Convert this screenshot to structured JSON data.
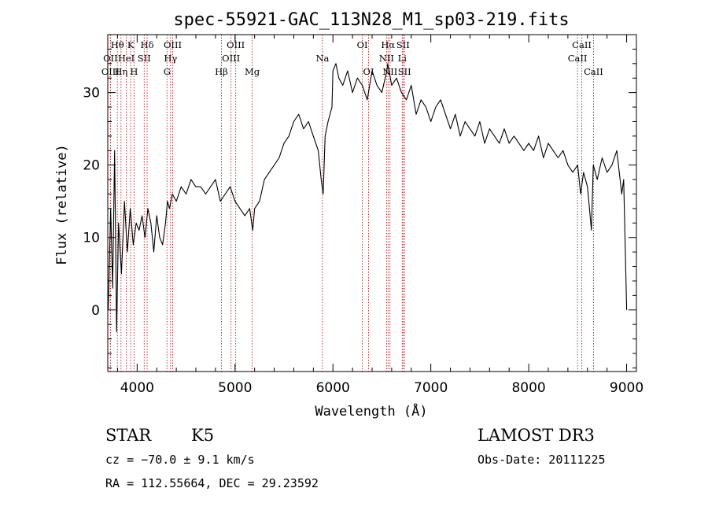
{
  "chart_data": {
    "type": "line",
    "title": "spec-55921-GAC_113N28_M1_sp03-219.fits",
    "xlabel": "Wavelength (Å)",
    "ylabel": "Flux (relative)",
    "xlim": [
      3700,
      9100
    ],
    "ylim": [
      -8.5,
      38
    ],
    "x_ticks": [
      4000,
      5000,
      6000,
      7000,
      8000,
      9000
    ],
    "y_ticks": [
      0,
      10,
      20,
      30
    ],
    "x_tick_labels": [
      "4000",
      "5000",
      "6000",
      "7000",
      "8000",
      "9000"
    ],
    "y_tick_labels": [
      "0",
      "10",
      "20",
      "30"
    ],
    "series": [
      {
        "name": "flux",
        "color": "#000000",
        "x": [
          3705,
          3730,
          3750,
          3770,
          3790,
          3810,
          3840,
          3870,
          3900,
          3930,
          3960,
          3990,
          4020,
          4050,
          4080,
          4110,
          4140,
          4170,
          4200,
          4230,
          4260,
          4290,
          4310,
          4330,
          4360,
          4400,
          4450,
          4500,
          4550,
          4600,
          4650,
          4700,
          4750,
          4800,
          4850,
          4900,
          4950,
          5000,
          5050,
          5100,
          5150,
          5180,
          5200,
          5250,
          5300,
          5350,
          5400,
          5450,
          5500,
          5550,
          5600,
          5650,
          5700,
          5750,
          5800,
          5850,
          5880,
          5900,
          5920,
          5950,
          5990,
          6000,
          6030,
          6060,
          6100,
          6150,
          6200,
          6250,
          6300,
          6350,
          6400,
          6450,
          6500,
          6550,
          6560,
          6600,
          6650,
          6700,
          6750,
          6800,
          6850,
          6900,
          6950,
          7000,
          7050,
          7100,
          7150,
          7200,
          7250,
          7300,
          7350,
          7400,
          7450,
          7500,
          7550,
          7600,
          7650,
          7700,
          7750,
          7800,
          7850,
          7900,
          7950,
          8000,
          8050,
          8100,
          8150,
          8200,
          8250,
          8300,
          8350,
          8400,
          8450,
          8500,
          8530,
          8560,
          8600,
          8640,
          8660,
          8700,
          8750,
          8800,
          8850,
          8900,
          8950,
          8970,
          9000
        ],
        "y": [
          0,
          14,
          3,
          22,
          -3,
          12,
          5,
          15,
          8,
          14,
          9,
          12,
          11,
          13,
          10,
          14,
          12,
          8,
          13,
          10,
          9,
          12,
          15,
          14,
          16,
          15,
          17,
          16,
          18,
          17,
          17,
          16,
          17,
          18,
          15,
          16,
          17,
          15,
          14,
          13,
          14,
          11,
          14,
          15,
          18,
          19,
          20,
          21,
          23,
          24,
          26,
          27,
          25,
          26,
          24,
          22,
          18,
          16,
          24,
          26,
          28,
          33,
          34,
          32,
          31,
          33,
          30,
          32,
          31,
          29,
          33,
          31,
          30,
          33,
          34,
          31,
          32,
          30,
          29,
          31,
          27,
          29,
          28,
          26,
          28,
          29,
          27,
          25,
          27,
          24,
          26,
          25,
          24,
          26,
          23,
          25,
          24,
          23,
          25,
          23,
          24,
          23,
          22,
          23,
          22,
          24,
          21,
          23,
          22,
          21,
          22,
          20,
          19,
          20,
          16,
          19,
          17,
          11,
          20,
          18,
          21,
          19,
          20,
          22,
          16,
          18,
          0
        ]
      }
    ],
    "lines": [
      {
        "label": "Hθ",
        "wave": 3798,
        "row": 1
      },
      {
        "label": "OII",
        "wave": 3727,
        "row": 2
      },
      {
        "label": "OIII",
        "wave": 3727,
        "row": 3
      },
      {
        "label": "K",
        "wave": 3934,
        "row": 1
      },
      {
        "label": "HeI",
        "wave": 3889,
        "row": 2
      },
      {
        "label": "Hη",
        "wave": 3835,
        "row": 3
      },
      {
        "label": "Hδ",
        "wave": 4102,
        "row": 1
      },
      {
        "label": "SII",
        "wave": 4072,
        "row": 2
      },
      {
        "label": "H",
        "wave": 3968,
        "row": 3
      },
      {
        "label": "OIII",
        "wave": 4363,
        "row": 1
      },
      {
        "label": "Hγ",
        "wave": 4341,
        "row": 2
      },
      {
        "label": "G",
        "wave": 4305,
        "row": 3
      },
      {
        "label": "OIII",
        "wave": 5007,
        "row": 1
      },
      {
        "label": "OIII",
        "wave": 4959,
        "row": 2
      },
      {
        "label": "Hβ",
        "wave": 4861,
        "row": 3
      },
      {
        "label": "Mg",
        "wave": 5175,
        "row": 3
      },
      {
        "label": "Na",
        "wave": 5893,
        "row": 2
      },
      {
        "label": "OI",
        "wave": 6300,
        "row": 1
      },
      {
        "label": "OI",
        "wave": 6364,
        "row": 3
      },
      {
        "label": "Hα",
        "wave": 6563,
        "row": 1
      },
      {
        "label": "NII",
        "wave": 6548,
        "row": 2
      },
      {
        "label": "NII",
        "wave": 6583,
        "row": 3
      },
      {
        "label": "SII",
        "wave": 6716,
        "row": 1
      },
      {
        "label": "Li",
        "wave": 6708,
        "row": 2
      },
      {
        "label": "SII",
        "wave": 6731,
        "row": 3
      },
      {
        "label": "CaII",
        "wave": 8542,
        "row": 1
      },
      {
        "label": "CaII",
        "wave": 8498,
        "row": 2
      },
      {
        "label": "CaII",
        "wave": 8662,
        "row": 3
      }
    ],
    "line_color": "#b22222"
  },
  "info": {
    "class": "STAR",
    "subclass": "K5",
    "survey": "LAMOST DR3",
    "cz": "cz = −70.0 ± 9.1 km/s",
    "obs_date": "Obs-Date: 20111225",
    "radec": "RA = 112.55664, DEC =  29.23592"
  }
}
